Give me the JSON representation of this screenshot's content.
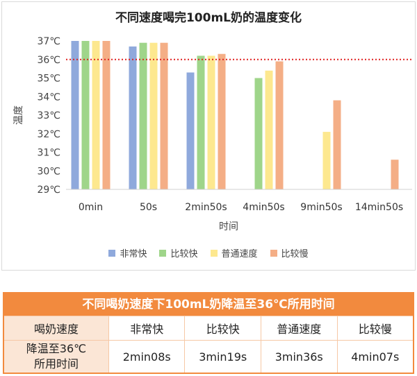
{
  "chart_data": {
    "type": "bar",
    "title": "不同速度喝完100mL奶的温度变化",
    "xlabel": "时间",
    "ylabel": "温度",
    "ylim": [
      29,
      37
    ],
    "yticks": [
      "29℃",
      "30℃",
      "31℃",
      "32℃",
      "33℃",
      "34℃",
      "35℃",
      "36℃",
      "37℃"
    ],
    "categories": [
      "0min",
      "50s",
      "2min50s",
      "4min50s",
      "9min50s",
      "14min50s"
    ],
    "reference_line": {
      "value": 36,
      "style": "dotted",
      "color": "#e02020"
    },
    "series": [
      {
        "name": "非常快",
        "color": "#8fa9dc",
        "values": [
          37.0,
          36.7,
          35.3,
          null,
          null,
          null
        ]
      },
      {
        "name": "比较快",
        "color": "#9fd58a",
        "values": [
          37.0,
          36.9,
          36.2,
          35.0,
          null,
          null
        ]
      },
      {
        "name": "普通速度",
        "color": "#fde88f",
        "values": [
          37.0,
          36.9,
          36.2,
          35.4,
          32.1,
          null
        ]
      },
      {
        "name": "比较慢",
        "color": "#f4ae86",
        "values": [
          37.0,
          36.9,
          36.3,
          35.9,
          33.8,
          30.6
        ]
      }
    ],
    "grid": false,
    "legend_position": "bottom"
  },
  "table": {
    "title": "不同喝奶速度下100mL奶降温至36℃所用时间",
    "row1_label": "喝奶速度",
    "row2_label_line1": "降温至36℃",
    "row2_label_line2": "所用时间",
    "speeds": [
      "非常快",
      "比较快",
      "普通速度",
      "比较慢"
    ],
    "times": [
      "2min08s",
      "3min19s",
      "3min36s",
      "4min07s"
    ],
    "colors": {
      "header_bg": "#f28a3e",
      "label_bg": "#fbe6d6",
      "border": "#f6c8a5"
    }
  }
}
